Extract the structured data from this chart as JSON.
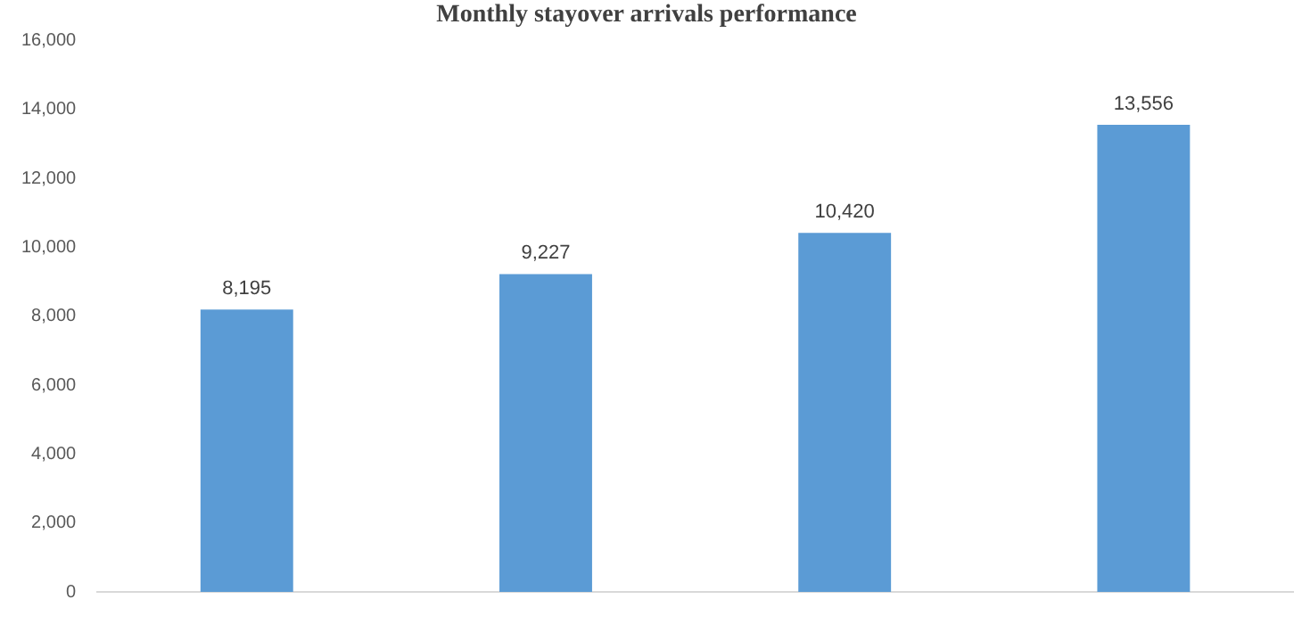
{
  "chart_data": {
    "type": "bar",
    "title": "Monthly stayover arrivals performance",
    "categories": [
      null,
      null,
      null,
      null
    ],
    "values": [
      8195,
      9227,
      10420,
      13556
    ],
    "color": "#5b9bd5",
    "value_labels": [
      "8,195",
      "9,227",
      "10,420",
      "13,556"
    ],
    "ylim": [
      0,
      16000
    ],
    "yticks": [
      {
        "value": 0,
        "label": "0"
      },
      {
        "value": 2000,
        "label": "2,000"
      },
      {
        "value": 4000,
        "label": "4,000"
      },
      {
        "value": 6000,
        "label": "6,000"
      },
      {
        "value": 8000,
        "label": "8,000"
      },
      {
        "value": 10000,
        "label": "10,000"
      },
      {
        "value": 12000,
        "label": "12,000"
      },
      {
        "value": 14000,
        "label": "14,000"
      },
      {
        "value": 16000,
        "label": "16,000"
      }
    ],
    "grid": false,
    "legend": false
  }
}
